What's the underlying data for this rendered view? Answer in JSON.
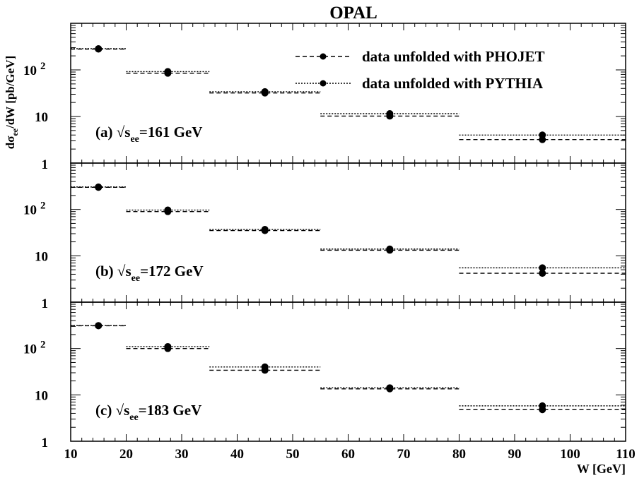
{
  "chart_data": {
    "type": "scatter",
    "title": "OPAL",
    "xlabel": "W [GeV]",
    "ylabel_main": "dσ",
    "ylabel_sub": "ee",
    "ylabel_rest": "/dW [pb/GeV]",
    "xlim": [
      10,
      110
    ],
    "ylim": [
      1,
      1000
    ],
    "yscale": "log",
    "x_ticks": [
      "10",
      "20",
      "30",
      "40",
      "50",
      "60",
      "70",
      "80",
      "90",
      "100",
      "110"
    ],
    "y_tick_labels": {
      "one": "1",
      "ten": "10",
      "hundred_base": "10",
      "hundred_exp": "2"
    },
    "bins": [
      [
        10,
        20
      ],
      [
        20,
        35
      ],
      [
        35,
        55
      ],
      [
        55,
        80
      ],
      [
        80,
        110
      ]
    ],
    "x_points": [
      15,
      27.5,
      45,
      67.5,
      95
    ],
    "legend": {
      "position": "top-right",
      "entries": [
        {
          "label": "data unfolded with PHOJET",
          "style": "dashed"
        },
        {
          "label": "data unfolded with PYTHIA",
          "style": "dotted"
        }
      ]
    },
    "panels": [
      {
        "tag": "(a)",
        "energy_prefix": "s",
        "energy_sub": "ee",
        "energy_value": "=161 GeV",
        "series": [
          {
            "name": "data unfolded with PHOJET",
            "values": [
              280,
              85,
              32,
              10.2,
              3.2
            ]
          },
          {
            "name": "data unfolded with PYTHIA",
            "values": [
              285,
              92,
              34,
              11.5,
              4.0
            ]
          }
        ]
      },
      {
        "tag": "(b)",
        "energy_prefix": "s",
        "energy_sub": "ee",
        "energy_value": "=172 GeV",
        "series": [
          {
            "name": "data unfolded with PHOJET",
            "values": [
              300,
              90,
              35,
              13.2,
              4.2
            ]
          },
          {
            "name": "data unfolded with PYTHIA",
            "values": [
              305,
              97,
              37,
              14,
              5.5
            ]
          }
        ]
      },
      {
        "tag": "(c)",
        "energy_prefix": "s",
        "energy_sub": "ee",
        "energy_value": "=183 GeV",
        "series": [
          {
            "name": "data unfolded with PHOJET",
            "values": [
              310,
              100,
              34,
              13.5,
              4.8
            ]
          },
          {
            "name": "data unfolded with PYTHIA",
            "values": [
              312,
              110,
              40,
              14.2,
              5.8
            ]
          }
        ]
      }
    ]
  }
}
